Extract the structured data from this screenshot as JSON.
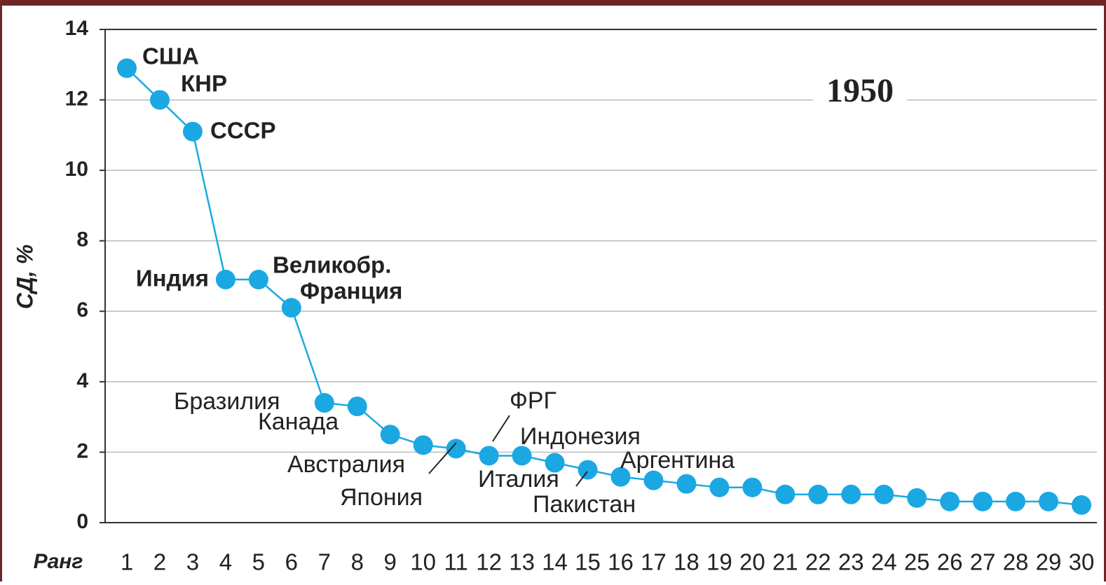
{
  "chart_data": {
    "type": "line",
    "year": "1950",
    "ylabel": "СД, %",
    "xlabel": "Ранг",
    "x": [
      1,
      2,
      3,
      4,
      5,
      6,
      7,
      8,
      9,
      10,
      11,
      12,
      13,
      14,
      15,
      16,
      17,
      18,
      19,
      20,
      21,
      22,
      23,
      24,
      25,
      26,
      27,
      28,
      29,
      30
    ],
    "xlim": [
      1,
      30
    ],
    "values": [
      12.9,
      12.0,
      11.1,
      6.9,
      6.9,
      6.1,
      3.4,
      3.3,
      2.5,
      2.2,
      2.1,
      1.9,
      1.9,
      1.7,
      1.5,
      1.3,
      1.2,
      1.1,
      1.0,
      1.0,
      0.8,
      0.8,
      0.8,
      0.8,
      0.7,
      0.6,
      0.6,
      0.6,
      0.6,
      0.5
    ],
    "color": "#1ba8e2",
    "ylim": [
      0,
      14
    ],
    "yticks": [
      0,
      2,
      4,
      6,
      8,
      10,
      12,
      14
    ],
    "grid": true,
    "annotations": [
      "США",
      "КНР",
      "СССР",
      "Индия",
      "Великобр.",
      "Франция",
      "Бразилия",
      "Канада",
      "Австралия",
      "Япония",
      "ФРГ",
      "Индонезия",
      "Италия",
      "Пакистан",
      "Аргентина"
    ]
  }
}
